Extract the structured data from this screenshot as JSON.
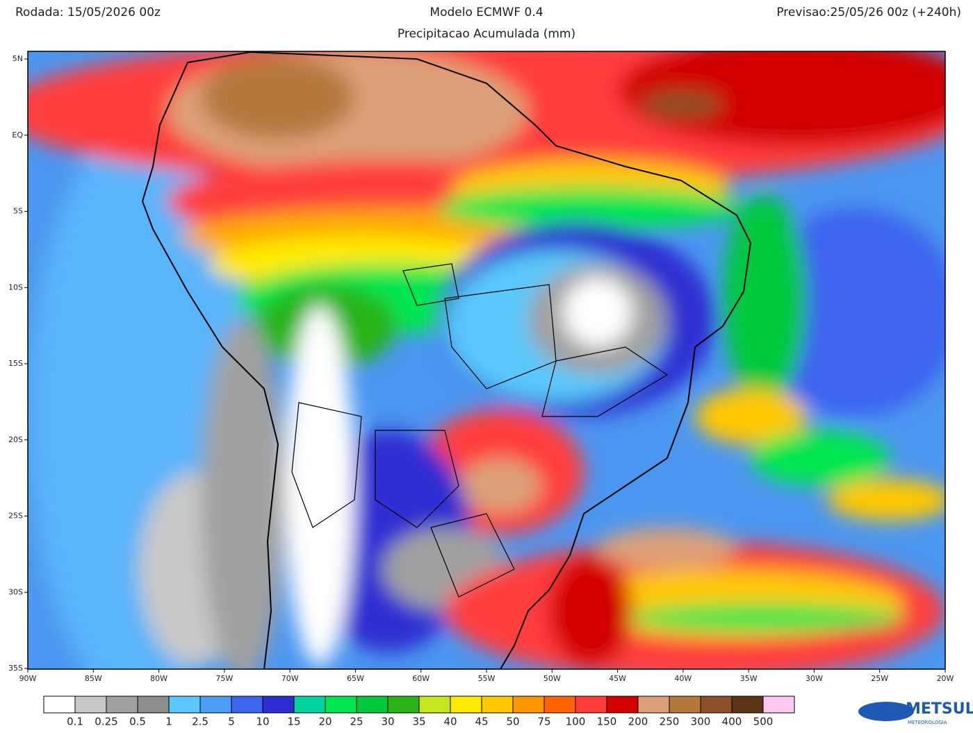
{
  "header": {
    "run": "Rodada: 15/05/2026 00z",
    "model": "Modelo ECMWF 0.4",
    "forecast": "Previsao:25/05/26 00z (+240h)",
    "subtitle": "Precipitacao Acumulada (mm)"
  },
  "map": {
    "lat_labels": [
      "5N",
      "EQ",
      "5S",
      "10S",
      "15S",
      "20S",
      "25S",
      "30S",
      "35S"
    ],
    "lon_labels": [
      "90W",
      "85W",
      "80W",
      "75W",
      "70W",
      "65W",
      "60W",
      "55W",
      "50W",
      "45W",
      "40W",
      "35W",
      "30W",
      "25W",
      "20W"
    ]
  },
  "legend": {
    "colors": [
      "#ffffff",
      "#c8c8c8",
      "#a0a0a0",
      "#8c8c8c",
      "#5ac8fa",
      "#4b9ef5",
      "#3c64f0",
      "#2d2dd2",
      "#00d2a0",
      "#00e650",
      "#00c83c",
      "#28b414",
      "#c8e61e",
      "#ffeb00",
      "#ffc800",
      "#ff9600",
      "#ff6400",
      "#ff3c3c",
      "#d20000",
      "#dca078",
      "#b4783c",
      "#8c5028",
      "#5a3214",
      "#ffc8f0"
    ],
    "levels": [
      0.1,
      0.25,
      0.5,
      1,
      2.5,
      5,
      10,
      15,
      20,
      25,
      30,
      35,
      40,
      45,
      50,
      75,
      100,
      150,
      200,
      250,
      300,
      400,
      500
    ]
  },
  "logo": {
    "name": "METSUL",
    "tagline": "METEOROLOGIA"
  }
}
